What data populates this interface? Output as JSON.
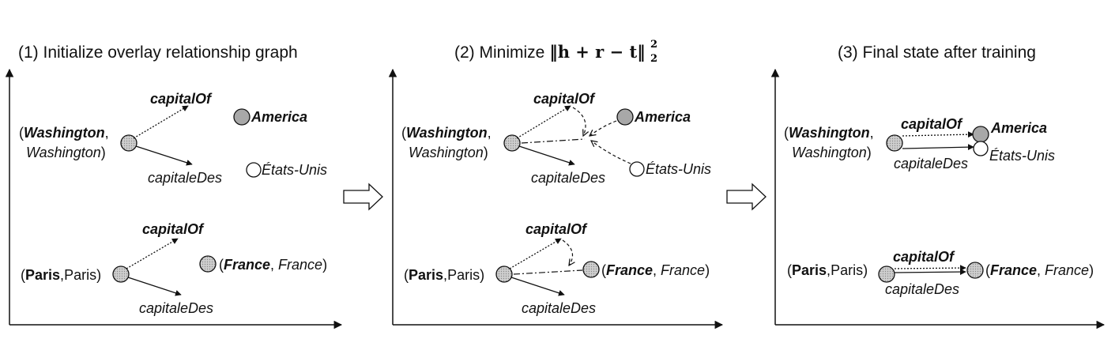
{
  "panel1": {
    "title": "(1) Initialize overlay relationship graph",
    "washington_name": "Washington",
    "washington_sep": ",",
    "washington_fr": "Washington",
    "paren_open": "(",
    "paren_close": ")",
    "rel_en": "capitalOf",
    "rel_fr": "capitaleDes",
    "america": "America",
    "etats": "États-Unis",
    "paris_name": "Paris",
    "paris_fr": "Paris",
    "france_name": "France",
    "france_fr": "France",
    "rel_en2": "capitalOf",
    "rel_fr2": "capitaleDes"
  },
  "panel2": {
    "title_prefix": "(2) Minimize ",
    "formula": "‖h + r − t‖",
    "formula_sup": "2",
    "formula_sub": "2",
    "washington_name": "Washington",
    "washington_fr": "Washington",
    "rel_en": "capitalOf",
    "rel_fr": "capitaleDes",
    "america": "America",
    "etats": "États-Unis",
    "paris_name": "Paris",
    "paris_fr": "Paris",
    "france_name": "France",
    "france_fr": "France",
    "rel_en2": "capitalOf",
    "rel_fr2": "capitaleDes"
  },
  "panel3": {
    "title": "(3) Final state after training",
    "washington_name": "Washington",
    "washington_fr": "Washington",
    "rel_en": "capitalOf",
    "rel_fr": "capitaleDes",
    "america": "America",
    "etats": "États-Unis",
    "paris_name": "Paris",
    "paris_fr": "Paris",
    "france_name": "France",
    "france_fr": "France",
    "rel_en2": "capitalOf",
    "rel_fr2": "capitaleDes"
  },
  "colors": {
    "entity_gray": "#bdbdbd",
    "entity_dark": "#a8a8a8",
    "entity_white": "#ffffff",
    "stroke": "#111111"
  }
}
